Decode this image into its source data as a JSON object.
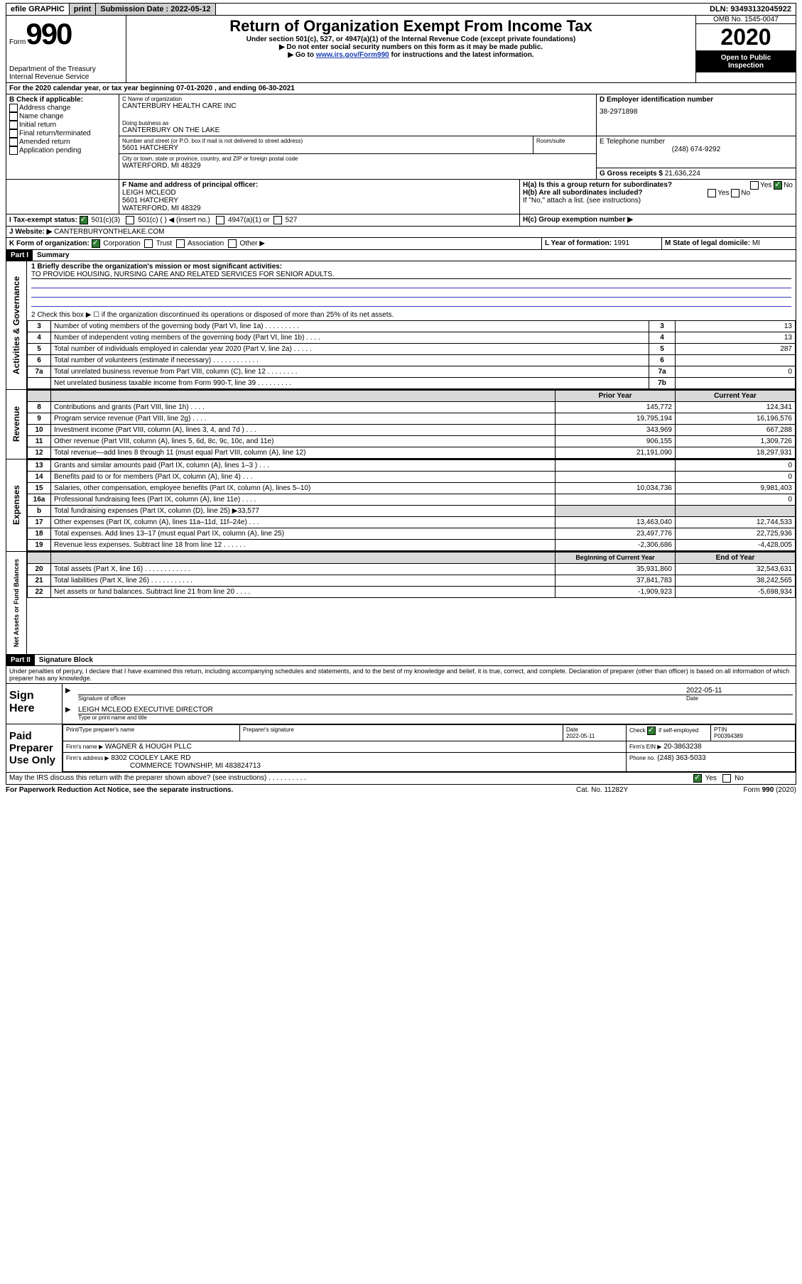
{
  "topbar": {
    "efile": "efile GRAPHIC",
    "print": "print",
    "sub_label": "Submission Date :",
    "sub_date": "2022-05-12",
    "dln_label": "DLN:",
    "dln": "93493132045922"
  },
  "header": {
    "form_word": "Form",
    "form_number": "990",
    "dept1": "Department of the Treasury",
    "dept2": "Internal Revenue Service",
    "title": "Return of Organization Exempt From Income Tax",
    "sub1": "Under section 501(c), 527, or 4947(a)(1) of the Internal Revenue Code (except private foundations)",
    "sub2": "▶ Do not enter social security numbers on this form as it may be made public.",
    "sub3_pre": "▶ Go to ",
    "sub3_link": "www.irs.gov/Form990",
    "sub3_post": " for instructions and the latest information.",
    "omb": "OMB No. 1545-0047",
    "year": "2020",
    "otp1": "Open to Public",
    "otp2": "Inspection"
  },
  "line_a": {
    "text_pre": "For the 2020 calendar year, or tax year beginning ",
    "begin": "07-01-2020",
    "mid": " , and ending ",
    "end": "06-30-2021"
  },
  "box_b": {
    "label": "B Check if applicable:",
    "items": [
      "Address change",
      "Name change",
      "Initial return",
      "Final return/terminated",
      "Amended return",
      "Application pending"
    ]
  },
  "box_c": {
    "label": "C Name of organization",
    "name": "CANTERBURY HEALTH CARE INC",
    "dba_label": "Doing business as",
    "dba": "CANTERBURY ON THE LAKE",
    "addr_label": "Number and street (or P.O. box if mail is not delivered to street address)",
    "room_label": "Room/suite",
    "addr": "5601 HATCHERY",
    "city_label": "City or town, state or province, country, and ZIP or foreign postal code",
    "city": "WATERFORD, MI  48329"
  },
  "box_d": {
    "label": "D Employer identification number",
    "ein": "38-2971898"
  },
  "box_e": {
    "label": "E Telephone number",
    "phone": "(248) 674-9292"
  },
  "box_g": {
    "label": "G Gross receipts $",
    "amount": "21,636,224"
  },
  "box_f": {
    "label": "F Name and address of principal officer:",
    "name": "LEIGH MCLEOD",
    "addr": "5601 HATCHERY",
    "city": "WATERFORD, MI  48329"
  },
  "box_h": {
    "ha": "H(a)  Is this a group return for subordinates?",
    "hb": "H(b)  Are all subordinates included?",
    "hb_note": "If \"No,\" attach a list. (see instructions)",
    "hc": "H(c)  Group exemption number ▶",
    "yes": "Yes",
    "no": "No"
  },
  "box_i": {
    "label": "I    Tax-exempt status:",
    "opts": [
      "501(c)(3)",
      "501(c) (   ) ◀ (insert no.)",
      "4947(a)(1) or",
      "527"
    ]
  },
  "box_j": {
    "label": "J    Website: ▶",
    "url": "CANTERBURYONTHELAKE.COM"
  },
  "box_k": {
    "label": "K Form of organization:",
    "opts": [
      "Corporation",
      "Trust",
      "Association",
      "Other ▶"
    ]
  },
  "box_l": {
    "label": "L Year of formation:",
    "year": "1991"
  },
  "box_m": {
    "label": "M State of legal domicile:",
    "state": "MI"
  },
  "part1": {
    "header": "Part I",
    "title": "Summary",
    "q1_label": "1   Briefly describe the organization's mission or most significant activities:",
    "q1_text": "TO PROVIDE HOUSING, NURSING CARE AND RELATED SERVICES FOR SENIOR ADULTS.",
    "q2": "2    Check this box ▶ ☐  if the organization discontinued its operations or disposed of more than 25% of its net assets.",
    "vlabel_gov": "Activities & Governance",
    "vlabel_rev": "Revenue",
    "vlabel_exp": "Expenses",
    "vlabel_net": "Net Assets or Fund Balances",
    "col_prior": "Prior Year",
    "col_current": "Current Year",
    "col_boy": "Beginning of Current Year",
    "col_eoy": "End of Year",
    "lines_gov": [
      {
        "n": "3",
        "label": "Number of voting members of the governing body (Part VI, line 1a)  .    .    .    .    .    .    .    .    .",
        "box": "3",
        "val": "13"
      },
      {
        "n": "4",
        "label": "Number of independent voting members of the governing body (Part VI, line 1b)   .    .    .    .",
        "box": "4",
        "val": "13"
      },
      {
        "n": "5",
        "label": "Total number of individuals employed in calendar year 2020 (Part V, line 2a)    .    .    .    .    .",
        "box": "5",
        "val": "287"
      },
      {
        "n": "6",
        "label": "Total number of volunteers (estimate if necessary)    .    .    .    .    .    .    .    .    .    .    .    .",
        "box": "6",
        "val": ""
      },
      {
        "n": "7a",
        "label": "Total unrelated business revenue from Part VIII, column (C), line 12   .    .    .    .    .    .    .    .",
        "box": "7a",
        "val": "0"
      },
      {
        "n": "",
        "label": "Net unrelated business taxable income from Form 990-T, line 39   .    .    .    .    .    .    .    .    .",
        "box": "7b",
        "val": ""
      }
    ],
    "lines_rev": [
      {
        "n": "8",
        "label": "Contributions and grants (Part VIII, line 1h)   .    .    .    .",
        "p": "145,772",
        "c": "124,341"
      },
      {
        "n": "9",
        "label": "Program service revenue (Part VIII, line 2g)    .    .    .    .",
        "p": "19,795,194",
        "c": "16,196,576"
      },
      {
        "n": "10",
        "label": "Investment income (Part VIII, column (A), lines 3, 4, and 7d )   .    .    .",
        "p": "343,969",
        "c": "667,288"
      },
      {
        "n": "11",
        "label": "Other revenue (Part VIII, column (A), lines 5, 6d, 8c, 9c, 10c, and 11e)",
        "p": "906,155",
        "c": "1,309,726"
      },
      {
        "n": "12",
        "label": "Total revenue—add lines 8 through 11 (must equal Part VIII, column (A), line 12)",
        "p": "21,191,090",
        "c": "18,297,931"
      }
    ],
    "lines_exp": [
      {
        "n": "13",
        "label": "Grants and similar amounts paid (Part IX, column (A), lines 1–3 )   .    .    .",
        "p": "",
        "c": "0"
      },
      {
        "n": "14",
        "label": "Benefits paid to or for members (Part IX, column (A), line 4)    .    .    .",
        "p": "",
        "c": "0"
      },
      {
        "n": "15",
        "label": "Salaries, other compensation, employee benefits (Part IX, column (A), lines 5–10)",
        "p": "10,034,736",
        "c": "9,981,403"
      },
      {
        "n": "16a",
        "label": "Professional fundraising fees (Part IX, column (A), line 11e)   .    .    .    .",
        "p": "",
        "c": "0"
      },
      {
        "n": "b",
        "label": "Total fundraising expenses (Part IX, column (D), line 25) ▶33,577",
        "p": "",
        "c": "",
        "shade": true
      },
      {
        "n": "17",
        "label": "Other expenses (Part IX, column (A), lines 11a–11d, 11f–24e)   .    .    .",
        "p": "13,463,040",
        "c": "12,744,533"
      },
      {
        "n": "18",
        "label": "Total expenses. Add lines 13–17 (must equal Part IX, column (A), line 25)",
        "p": "23,497,776",
        "c": "22,725,936"
      },
      {
        "n": "19",
        "label": "Revenue less expenses. Subtract line 18 from line 12   .    .    .    .    .    .",
        "p": "-2,306,686",
        "c": "-4,428,005"
      }
    ],
    "lines_net": [
      {
        "n": "20",
        "label": "Total assets (Part X, line 16)    .    .    .    .    .    .    .    .    .    .    .    .",
        "p": "35,931,860",
        "c": "32,543,631"
      },
      {
        "n": "21",
        "label": "Total liabilities (Part X, line 26)   .    .    .    .    .    .    .    .    .    .    .",
        "p": "37,841,783",
        "c": "38,242,565"
      },
      {
        "n": "22",
        "label": "Net assets or fund balances. Subtract line 21 from line 20   .    .    .    .",
        "p": "-1,909,923",
        "c": "-5,698,934"
      }
    ]
  },
  "part2": {
    "header": "Part II",
    "title": "Signature Block",
    "penalty": "Under penalties of perjury, I declare that I have examined this return, including accompanying schedules and statements, and to the best of my knowledge and belief, it is true, correct, and complete. Declaration of preparer (other than officer) is based on all information of which preparer has any knowledge.",
    "sign_here": "Sign Here",
    "sig_officer": "Signature of officer",
    "sig_date": "2022-05-11",
    "date_label": "Date",
    "officer_name": "LEIGH MCLEOD  EXECUTIVE DIRECTOR",
    "type_label": "Type or print name and title",
    "paid": "Paid Preparer Use Only",
    "prep_name_label": "Print/Type preparer's name",
    "prep_sig_label": "Preparer's signature",
    "prep_date_label": "Date",
    "prep_date": "2022-05-11",
    "check_label": "Check ",
    "self_emp": " if self-employed",
    "ptin_label": "PTIN",
    "ptin": "P00394389",
    "firm_name_label": "Firm's name    ▶",
    "firm_name": "WAGNER & HOUGH PLLC",
    "firm_ein_label": "Firm's EIN ▶",
    "firm_ein": "20-3863238",
    "firm_addr_label": "Firm's address ▶",
    "firm_addr1": "8302 COOLEY LAKE RD",
    "firm_addr2": "COMMERCE TOWNSHIP, MI  483824713",
    "phone_label": "Phone no.",
    "phone": "(248) 363-5033",
    "discuss": "May the IRS discuss this return with the preparer shown above? (see instructions)    .    .    .    .    .    .    .    .    .    .",
    "yes": "Yes",
    "no": "No"
  },
  "footer": {
    "left": "For Paperwork Reduction Act Notice, see the separate instructions.",
    "mid": "Cat. No. 11282Y",
    "right": "Form 990 (2020)"
  },
  "colors": {
    "link": "#1a3fb3",
    "check": "#2e7d32",
    "shade": "#d9d9d9",
    "blueline": "#3838bb"
  }
}
